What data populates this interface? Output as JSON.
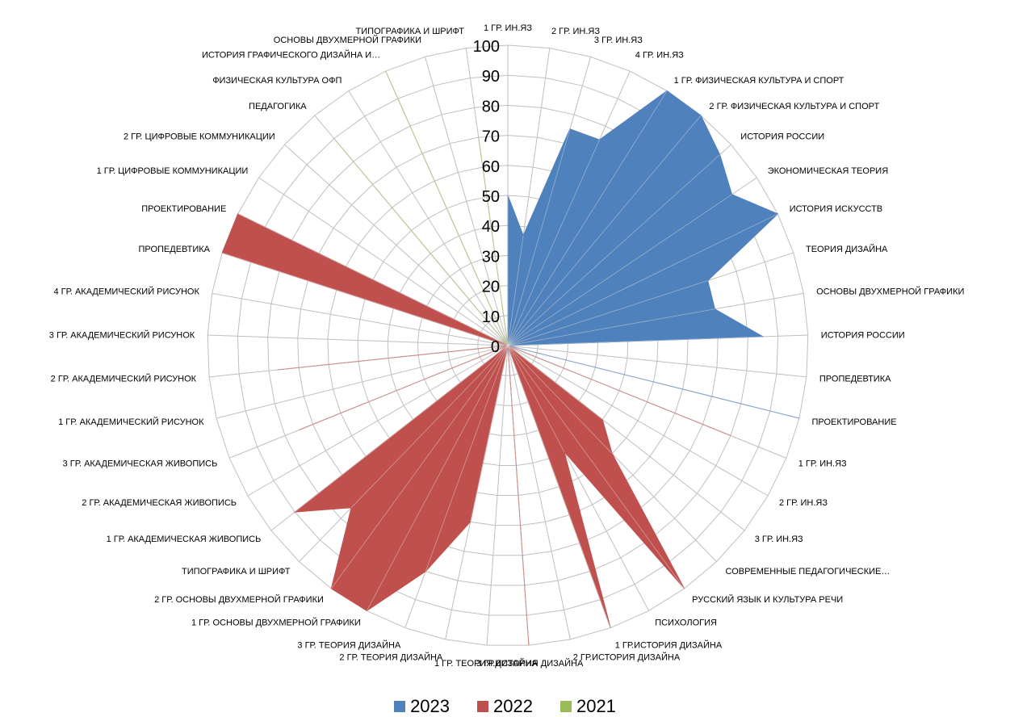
{
  "chart_data": {
    "type": "radar",
    "categories": [
      "1 ГР. ИН.ЯЗ",
      "2 ГР. ИН.ЯЗ",
      "3 ГР. ИН.ЯЗ",
      "4 ГР. ИН.ЯЗ",
      "1 ГР. ФИЗИЧЕСКАЯ КУЛЬТУРА И СПОРТ",
      "2 ГР. ФИЗИЧЕСКАЯ КУЛЬТУРА И СПОРТ",
      "ИСТОРИЯ РОССИИ",
      "ЭКОНОМИЧЕСКАЯ ТЕОРИЯ",
      "ИСТОРИЯ ИСКУССТВ",
      "ТЕОРИЯ ДИЗАЙНА",
      "ОСНОВЫ ДВУХМЕРНОЙ ГРАФИКИ",
      "ИСТОРИЯ РОССИИ",
      "ПРОПЕДЕВТИКА",
      "ПРОЕКТИРОВАНИЕ",
      "1 ГР. ИН.ЯЗ",
      "2 ГР. ИН.ЯЗ",
      "3 ГР. ИН.ЯЗ",
      "СОВРЕМЕННЫЕ ПЕДАГОГИЧЕСКИЕ…",
      "РУССКИЙ ЯЗЫК И КУЛЬТУРА РЕЧИ",
      "ПСИХОЛОГИЯ",
      "1 ГР.ИСТОРИЯ ДИЗАЙНА",
      "2 ГР.ИСТОРИЯ ДИЗАЙНА",
      "3 ГР.ИСТОРИЯ ДИЗАЙНА",
      "1 ГР. ТЕОРИЯ ДИЗАЙНА",
      "2 ГР. ТЕОРИЯ ДИЗАЙНА",
      "3 ГР. ТЕОРИЯ ДИЗАЙНА",
      "1 ГР. ОСНОВЫ ДВУХМЕРНОЙ ГРАФИКИ",
      "2 ГР. ОСНОВЫ ДВУХМЕРНОЙ ГРАФИКИ",
      "ТИПОГРАФИКА И ШРИФТ",
      "1 ГР. АКАДЕМИЧЕСКАЯ ЖИВОПИСЬ",
      "2 ГР. АКАДЕМИЧЕСКАЯ ЖИВОПИСЬ",
      "3 ГР. АКАДЕМИЧЕСКАЯ ЖИВОПИСЬ",
      "1 ГР. АКАДЕМИЧЕСКИЙ РИСУНОК",
      "2 ГР. АКАДЕМИЧЕСКИЙ РИСУНОК",
      "3 ГР. АКАДЕМИЧЕСКИЙ РИСУНОК",
      "4 ГР. АКАДЕМИЧЕСКИЙ РИСУНОК",
      "ПРОПЕДЕВТИКА",
      "ПРОЕКТИРОВАНИЕ",
      "1 ГР. ЦИФРОВЫЕ КОММУНИКАЦИИ",
      "2 ГР. ЦИФРОВЫЕ КОММУНИКАЦИИ",
      "ПЕДАГОГИКА",
      "ФИЗИЧЕСКАЯ КУЛЬТУРА ОФП",
      "ИСТОРИЯ ГРАФИЧЕСКОГО ДИЗАЙНА И…",
      "ОСНОВЫ ДВУХМЕРНОЙ ГРАФИКИ",
      "ТИПОГРАФИКА И ШРИФТ"
    ],
    "series": [
      {
        "name": "2023",
        "color": "#4F81BD",
        "values": [
          50,
          37,
          75,
          75,
          100,
          100,
          95,
          90,
          100,
          70,
          70,
          85,
          0,
          100,
          0,
          0,
          0,
          0,
          0,
          0,
          0,
          0,
          0,
          0,
          0,
          0,
          0,
          0,
          0,
          0,
          0,
          0,
          0,
          0,
          0,
          0,
          0,
          0,
          0,
          0,
          0,
          0,
          0,
          0,
          0
        ]
      },
      {
        "name": "2022",
        "color": "#C0504D",
        "values": [
          0,
          0,
          0,
          0,
          0,
          0,
          0,
          0,
          0,
          0,
          0,
          0,
          0,
          0,
          80,
          0,
          40,
          50,
          100,
          40,
          100,
          0,
          100,
          0,
          60,
          80,
          100,
          100,
          75,
          90,
          0,
          75,
          0,
          77,
          0,
          0,
          100,
          100,
          0,
          0,
          0,
          0,
          0,
          0,
          0
        ]
      },
      {
        "name": "2021",
        "color": "#9BBB59",
        "values": [
          0,
          0,
          0,
          0,
          0,
          0,
          0,
          0,
          0,
          0,
          0,
          0,
          0,
          0,
          0,
          0,
          0,
          0,
          0,
          0,
          0,
          0,
          0,
          0,
          0,
          0,
          0,
          0,
          0,
          0,
          0,
          0,
          0,
          0,
          0,
          0,
          0,
          0,
          0,
          0,
          90,
          0,
          100,
          0,
          70
        ]
      }
    ],
    "rlim": [
      0,
      100
    ],
    "ticks": [
      0,
      10,
      20,
      30,
      40,
      50,
      60,
      70,
      80,
      90,
      100
    ],
    "grid": true,
    "legend_position": "bottom"
  }
}
